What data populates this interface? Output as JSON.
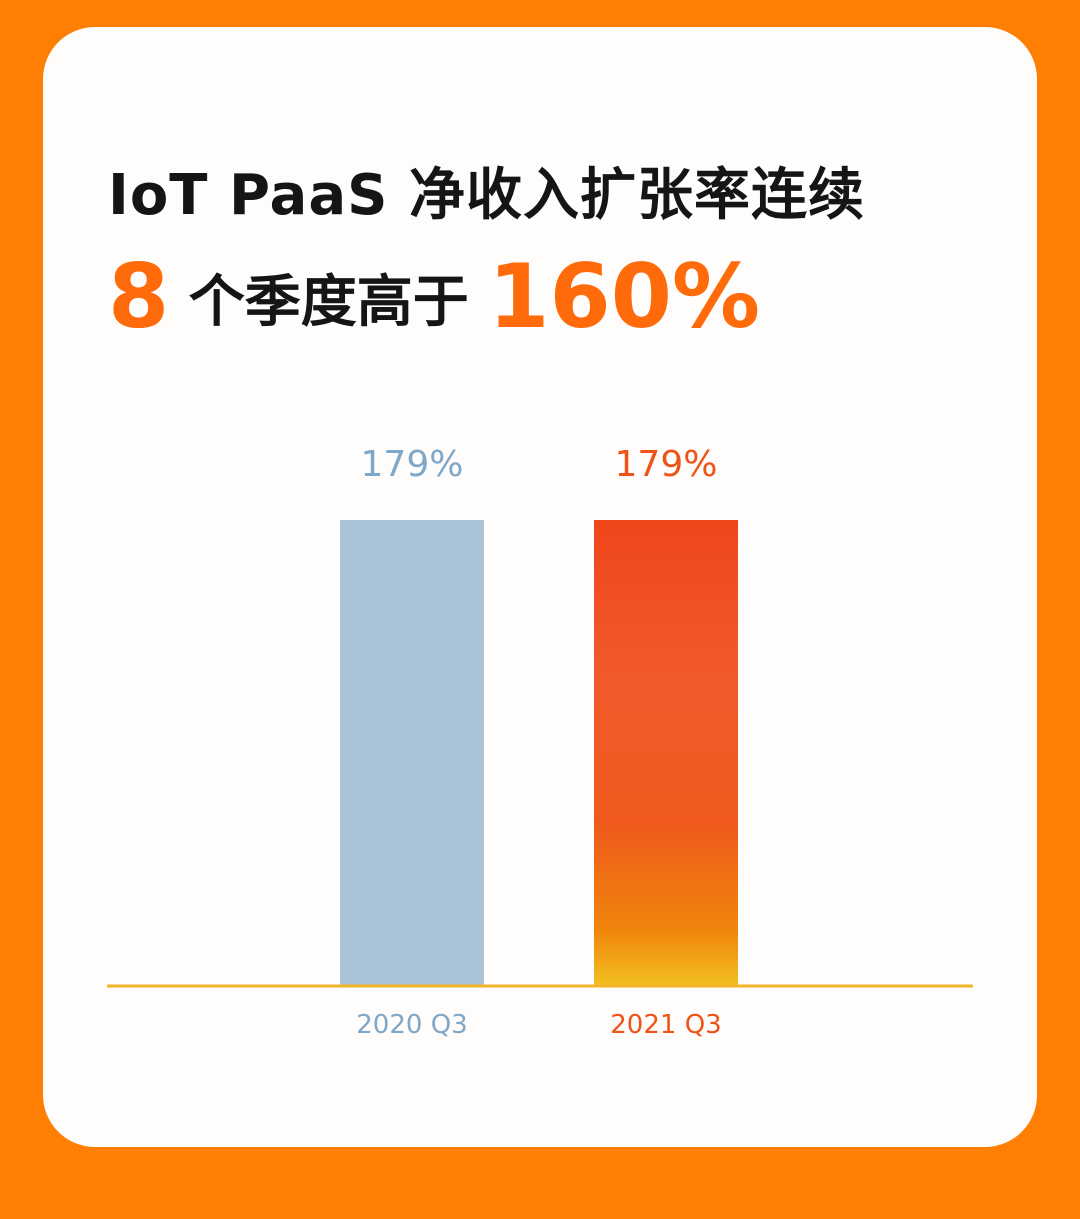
{
  "title": {
    "line1": "IoT PaaS 净收入扩张率连续",
    "line2_num": "8",
    "line2_text": " 个季度高于 ",
    "line2_pct": "160%"
  },
  "chart_data": {
    "type": "bar",
    "categories": [
      "2020 Q3",
      "2021 Q3"
    ],
    "values": [
      179,
      179
    ],
    "data_labels": [
      "179%",
      "179%"
    ],
    "ylim": [
      0,
      179
    ],
    "grid": false,
    "colors": [
      "#A9C3D9",
      "#F04A1C"
    ],
    "label_colors": [
      "#7FA7C8",
      "#EE5417"
    ],
    "baseline_color": "#F2B52A"
  }
}
